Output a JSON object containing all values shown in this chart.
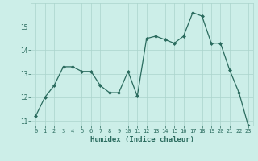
{
  "x": [
    0,
    1,
    2,
    3,
    4,
    5,
    6,
    7,
    8,
    9,
    10,
    11,
    12,
    13,
    14,
    15,
    16,
    17,
    18,
    19,
    20,
    21,
    22,
    23
  ],
  "y": [
    11.2,
    12.0,
    12.5,
    13.3,
    13.3,
    13.1,
    13.1,
    12.5,
    12.2,
    12.2,
    13.1,
    12.05,
    14.5,
    14.6,
    14.45,
    14.3,
    14.6,
    15.6,
    15.45,
    14.3,
    14.3,
    13.15,
    12.2,
    10.8
  ],
  "xlabel": "Humidex (Indice chaleur)",
  "ylim": [
    10.8,
    16.0
  ],
  "xlim": [
    -0.5,
    23.5
  ],
  "yticks": [
    11,
    12,
    13,
    14,
    15
  ],
  "xticks": [
    0,
    1,
    2,
    3,
    4,
    5,
    6,
    7,
    8,
    9,
    10,
    11,
    12,
    13,
    14,
    15,
    16,
    17,
    18,
    19,
    20,
    21,
    22,
    23
  ],
  "line_color": "#2a6b5e",
  "bg_color": "#cceee8",
  "grid_color": "#aad4cc",
  "font_color": "#2a6b5e"
}
